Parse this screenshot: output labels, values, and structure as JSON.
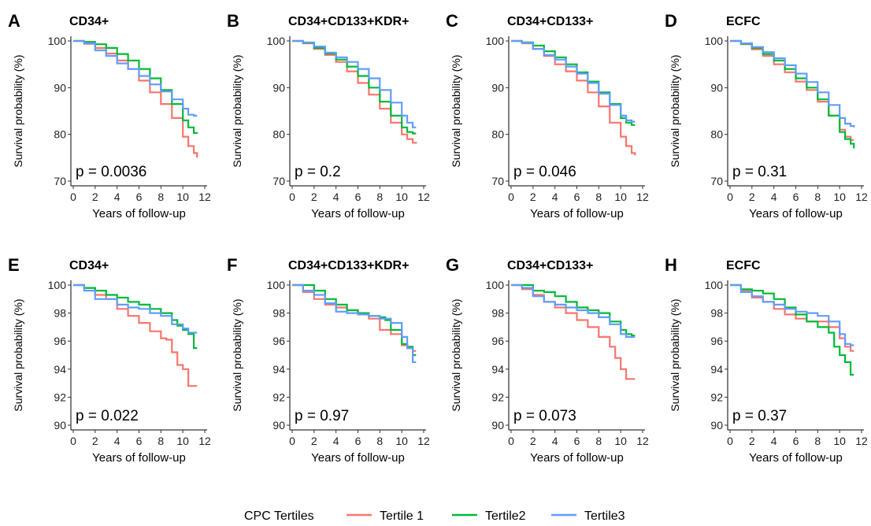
{
  "chart_data": [
    {
      "panel": "A",
      "type": "line",
      "title": "CD34+",
      "xlabel": "Years of follow-up",
      "ylabel": "Survival probability (%)",
      "xlim": [
        0,
        12
      ],
      "ylim": [
        70,
        100
      ],
      "xticks": [
        0,
        2,
        4,
        6,
        8,
        10,
        12
      ],
      "yticks": [
        70,
        80,
        90,
        100
      ],
      "pvalue": "p = 0.0036",
      "series": [
        {
          "name": "Tertile 1",
          "x": [
            0,
            1,
            2,
            3,
            4,
            5,
            6,
            7,
            8,
            9,
            10,
            10.5,
            11,
            11.3
          ],
          "y": [
            100,
            99.4,
            98.5,
            97.3,
            95.8,
            94,
            91.5,
            89,
            86.5,
            83.5,
            79.5,
            77.5,
            76,
            75
          ]
        },
        {
          "name": "Tertile2",
          "x": [
            0,
            1,
            2,
            3,
            4,
            5,
            6,
            7,
            8,
            9,
            10,
            10.5,
            11,
            11.3
          ],
          "y": [
            100,
            99.8,
            99.3,
            98.5,
            97.2,
            95.8,
            94,
            92,
            89.5,
            86.5,
            83,
            81.5,
            80.3,
            80.2
          ]
        },
        {
          "name": "Tertile3",
          "x": [
            0,
            1,
            2,
            3,
            4,
            5,
            6,
            7,
            8,
            9,
            10,
            10.5,
            11,
            11.3
          ],
          "y": [
            100,
            99.5,
            98,
            96.8,
            95.2,
            94,
            92.5,
            90.7,
            89.2,
            87.5,
            85.5,
            84.2,
            84,
            84
          ]
        }
      ]
    },
    {
      "panel": "B",
      "type": "line",
      "title": "CD34+CD133+KDR+",
      "xlabel": "Years of follow-up",
      "ylabel": "Survival probability (%)",
      "xlim": [
        0,
        12
      ],
      "ylim": [
        70,
        100
      ],
      "xticks": [
        0,
        2,
        4,
        6,
        8,
        10,
        12
      ],
      "yticks": [
        70,
        80,
        90,
        100
      ],
      "pvalue": "p = 0.2",
      "series": [
        {
          "name": "Tertile 1",
          "x": [
            0,
            1,
            2,
            3,
            4,
            5,
            6,
            7,
            8,
            9,
            10,
            10.5,
            11,
            11.3
          ],
          "y": [
            100,
            99.5,
            98.3,
            97,
            95.5,
            93.5,
            91,
            88.5,
            85.5,
            82.5,
            80,
            79,
            78.2,
            78
          ]
        },
        {
          "name": "Tertile2",
          "x": [
            0,
            1,
            2,
            3,
            4,
            5,
            6,
            7,
            8,
            9,
            10,
            10.5,
            11,
            11.3
          ],
          "y": [
            100,
            99.6,
            98.5,
            97.3,
            96,
            94.5,
            92.5,
            90,
            87,
            84,
            81.5,
            80.5,
            80.2,
            80.2
          ]
        },
        {
          "name": "Tertile3",
          "x": [
            0,
            1,
            2,
            3,
            4,
            5,
            6,
            7,
            8,
            9,
            10,
            10.5,
            11,
            11.3
          ],
          "y": [
            100,
            99.7,
            98.8,
            97.5,
            96.5,
            95.5,
            94,
            92,
            89.5,
            86.8,
            84,
            82.5,
            81.5,
            81.5
          ]
        }
      ]
    },
    {
      "panel": "C",
      "type": "line",
      "title": "CD34+CD133+",
      "xlabel": "Years of follow-up",
      "ylabel": "Survival probability (%)",
      "xlim": [
        0,
        12
      ],
      "ylim": [
        70,
        100
      ],
      "xticks": [
        0,
        2,
        4,
        6,
        8,
        10,
        12
      ],
      "yticks": [
        70,
        80,
        90,
        100
      ],
      "pvalue": "p = 0.046",
      "series": [
        {
          "name": "Tertile 1",
          "x": [
            0,
            1,
            2,
            3,
            4,
            5,
            6,
            7,
            8,
            9,
            10,
            10.5,
            11,
            11.3
          ],
          "y": [
            100,
            99.5,
            98.3,
            96.8,
            95,
            93.5,
            91.5,
            89,
            86,
            82.5,
            79.5,
            77.5,
            76,
            75.5
          ]
        },
        {
          "name": "Tertile2",
          "x": [
            0,
            1,
            2,
            3,
            4,
            5,
            6,
            7,
            8,
            9,
            10,
            10.5,
            11,
            11.3
          ],
          "y": [
            100,
            99.7,
            99,
            97.8,
            96.5,
            95,
            93.3,
            91.3,
            89,
            86.5,
            83.5,
            82.5,
            82,
            82
          ]
        },
        {
          "name": "Tertile3",
          "x": [
            0,
            1,
            2,
            3,
            4,
            5,
            6,
            7,
            8,
            9,
            10,
            10.5,
            11,
            11.3
          ],
          "y": [
            100,
            99.6,
            98.3,
            97,
            96,
            94.5,
            93,
            91,
            88.7,
            86.3,
            84,
            83,
            82.7,
            82.7
          ]
        }
      ]
    },
    {
      "panel": "D",
      "type": "line",
      "title": "ECFC",
      "xlabel": "Years of follow-up",
      "ylabel": "Survival probability (%)",
      "xlim": [
        0,
        12
      ],
      "ylim": [
        70,
        100
      ],
      "xticks": [
        0,
        2,
        4,
        6,
        8,
        10,
        12
      ],
      "yticks": [
        70,
        80,
        90,
        100
      ],
      "pvalue": "p = 0.31",
      "series": [
        {
          "name": "Tertile 1",
          "x": [
            0,
            1,
            2,
            3,
            4,
            5,
            6,
            7,
            8,
            9,
            10,
            10.5,
            11,
            11.3
          ],
          "y": [
            100,
            99.3,
            98.2,
            96.8,
            95,
            93.3,
            91.3,
            89.5,
            87,
            84,
            81,
            79.5,
            78.8,
            78.8
          ]
        },
        {
          "name": "Tertile2",
          "x": [
            0,
            1,
            2,
            3,
            4,
            5,
            6,
            7,
            8,
            9,
            10,
            10.5,
            11,
            11.3
          ],
          "y": [
            100,
            99.4,
            98.5,
            97.2,
            95.8,
            94,
            92,
            90,
            87.5,
            84,
            80.5,
            79,
            78,
            77
          ]
        },
        {
          "name": "Tertile3",
          "x": [
            0,
            1,
            2,
            3,
            4,
            5,
            6,
            7,
            8,
            9,
            10,
            10.5,
            11,
            11.3
          ],
          "y": [
            100,
            99.5,
            98.7,
            97.6,
            96.3,
            94.8,
            93,
            91.2,
            89,
            86.3,
            83.5,
            82.3,
            81.8,
            81.5
          ]
        }
      ]
    },
    {
      "panel": "E",
      "type": "line",
      "title": "CD34+",
      "xlabel": "Years of follow-up",
      "ylabel": "Survival probability (%)",
      "xlim": [
        0,
        12
      ],
      "ylim": [
        90,
        100
      ],
      "xticks": [
        0,
        2,
        4,
        6,
        8,
        10,
        12
      ],
      "yticks": [
        90,
        92,
        94,
        96,
        98,
        100
      ],
      "pvalue": "p = 0.022",
      "series": [
        {
          "name": "Tertile 1",
          "x": [
            0,
            1,
            2,
            3,
            4,
            5,
            6,
            7,
            8,
            8.5,
            9,
            9.5,
            10,
            10.5,
            11,
            11.3
          ],
          "y": [
            100,
            99.8,
            99.3,
            99,
            98.3,
            97.8,
            97.3,
            96.7,
            96.2,
            96.1,
            95.2,
            94.3,
            94,
            92.8,
            92.8,
            92.8
          ]
        },
        {
          "name": "Tertile2",
          "x": [
            0,
            1,
            2,
            3,
            4,
            5,
            6,
            7,
            8,
            9,
            9.5,
            10,
            10.5,
            11,
            11.3
          ],
          "y": [
            100,
            99.8,
            99.6,
            99.3,
            99.1,
            98.8,
            98.6,
            98.3,
            98,
            97.5,
            97.1,
            96.8,
            96.5,
            95.5,
            95.5
          ]
        },
        {
          "name": "Tertile3",
          "x": [
            0,
            1,
            2,
            3,
            4,
            5,
            6,
            7,
            8,
            9,
            10,
            10.5,
            11,
            11.3
          ],
          "y": [
            100,
            99.6,
            99,
            99,
            98.6,
            98.4,
            98.3,
            98,
            97.8,
            97.2,
            96.9,
            96.6,
            96.6,
            96.6
          ]
        }
      ]
    },
    {
      "panel": "F",
      "type": "line",
      "title": "CD34+CD133+KDR+",
      "xlabel": "Years of follow-up",
      "ylabel": "Survival probability (%)",
      "xlim": [
        0,
        12
      ],
      "ylim": [
        90,
        100
      ],
      "xticks": [
        0,
        2,
        4,
        6,
        8,
        10,
        12
      ],
      "yticks": [
        90,
        92,
        94,
        96,
        98,
        100
      ],
      "pvalue": "p = 0.97",
      "series": [
        {
          "name": "Tertile 1",
          "x": [
            0,
            1,
            2,
            3,
            4,
            5,
            6,
            7,
            8,
            9,
            10,
            10.5,
            11,
            11.3
          ],
          "y": [
            100,
            99.5,
            99,
            98.6,
            98.4,
            98.2,
            98,
            97.6,
            96.8,
            96.5,
            95.7,
            95.5,
            95.3,
            95.3
          ]
        },
        {
          "name": "Tertile2",
          "x": [
            0,
            1,
            2,
            3,
            4,
            5,
            6,
            7,
            8,
            8.5,
            9,
            10,
            10.5,
            11,
            11.3
          ],
          "y": [
            100,
            100,
            99.6,
            99,
            98.6,
            98.2,
            98,
            97.8,
            97.7,
            97.5,
            96.8,
            95.8,
            95.6,
            95,
            95
          ]
        },
        {
          "name": "Tertile3",
          "x": [
            0,
            1,
            2,
            3,
            4,
            5,
            6,
            7,
            8,
            9,
            10,
            10.5,
            11,
            11.3
          ],
          "y": [
            100,
            99.6,
            99.3,
            98.7,
            98.1,
            98,
            97.9,
            97.8,
            97.6,
            97.3,
            96.3,
            95.5,
            94.5,
            94.5
          ]
        }
      ]
    },
    {
      "panel": "G",
      "type": "line",
      "title": "CD34+CD133+",
      "xlabel": "Years of follow-up",
      "ylabel": "Survival probability (%)",
      "xlim": [
        0,
        12
      ],
      "ylim": [
        90,
        100
      ],
      "xticks": [
        0,
        2,
        4,
        6,
        8,
        10,
        12
      ],
      "yticks": [
        90,
        92,
        94,
        96,
        98,
        100
      ],
      "pvalue": "p = 0.073",
      "series": [
        {
          "name": "Tertile 1",
          "x": [
            0,
            1,
            2,
            3,
            4,
            5,
            6,
            7,
            8,
            9,
            9.5,
            10,
            10.5,
            11,
            11.3
          ],
          "y": [
            100,
            99.7,
            99.3,
            98.8,
            98.4,
            98,
            97.5,
            97,
            96.3,
            95.6,
            94.8,
            94,
            93.3,
            93.3,
            93.3
          ]
        },
        {
          "name": "Tertile2",
          "x": [
            0,
            1,
            2,
            3,
            4,
            5,
            6,
            7,
            8,
            9,
            10,
            10.5,
            11,
            11.3
          ],
          "y": [
            100,
            100,
            99.6,
            99.5,
            99.2,
            98.8,
            98.4,
            98.2,
            98,
            97.4,
            96.8,
            96.5,
            96.4,
            96.4
          ]
        },
        {
          "name": "Tertile3",
          "x": [
            0,
            1,
            2,
            3,
            4,
            5,
            6,
            7,
            8,
            9,
            10,
            10.5,
            11,
            11.3
          ],
          "y": [
            100,
            99.8,
            99.2,
            98.8,
            98.6,
            98.4,
            98.2,
            98,
            97.7,
            97.2,
            96.5,
            96.3,
            96.3,
            96.3
          ]
        }
      ]
    },
    {
      "panel": "H",
      "type": "line",
      "title": "ECFC",
      "xlabel": "Years of follow-up",
      "ylabel": "Survival probability (%)",
      "xlim": [
        0,
        12
      ],
      "ylim": [
        90,
        100
      ],
      "xticks": [
        0,
        2,
        4,
        6,
        8,
        10,
        12
      ],
      "yticks": [
        90,
        92,
        94,
        96,
        98,
        100
      ],
      "pvalue": "p = 0.37",
      "series": [
        {
          "name": "Tertile 1",
          "x": [
            0,
            1,
            2,
            3,
            4,
            5,
            6,
            7,
            8,
            9,
            10,
            10.5,
            11,
            11.3
          ],
          "y": [
            100,
            99.6,
            99.1,
            98.8,
            98.3,
            97.9,
            97.6,
            97.4,
            97.4,
            97,
            96.2,
            95.6,
            95.3,
            95.3
          ]
        },
        {
          "name": "Tertile2",
          "x": [
            0,
            1,
            2,
            3,
            4,
            5,
            6,
            7,
            8,
            9,
            9.5,
            10,
            10.5,
            11,
            11.3
          ],
          "y": [
            100,
            99.7,
            99.6,
            99.4,
            99,
            98.4,
            97.9,
            97.4,
            97,
            96.6,
            95.6,
            95,
            94.5,
            93.6,
            93.6
          ]
        },
        {
          "name": "Tertile3",
          "x": [
            0,
            1,
            2,
            3,
            4,
            5,
            6,
            7,
            8,
            9,
            10,
            10.5,
            11,
            11.3
          ],
          "y": [
            100,
            99.5,
            99.2,
            98.8,
            98.6,
            98.3,
            98.1,
            98,
            97.8,
            97.4,
            96.5,
            95.8,
            95.7,
            95.7
          ]
        }
      ]
    }
  ],
  "legend": {
    "title": "CPC Tertiles",
    "entries": [
      "Tertile 1",
      "Tertile2",
      "Tertile3"
    ],
    "colors": [
      "#F8766D",
      "#00BA38",
      "#619CFF"
    ]
  }
}
